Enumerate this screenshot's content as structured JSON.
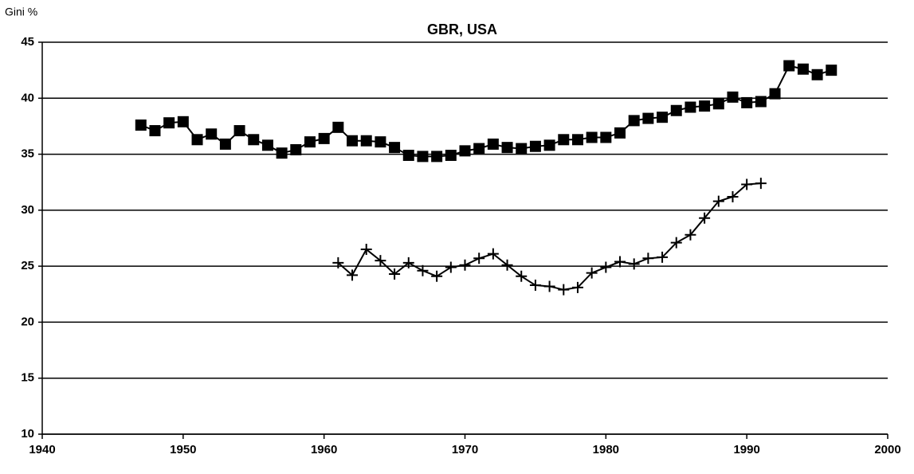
{
  "chart_data": {
    "type": "line",
    "title": "GBR, USA",
    "y_label": "Gini %",
    "xlim": [
      1940,
      2000
    ],
    "xticks": [
      1940,
      1950,
      1960,
      1970,
      1980,
      1990,
      2000
    ],
    "ylim": [
      10,
      45
    ],
    "yticks": [
      10,
      15,
      20,
      25,
      30,
      35,
      40,
      45
    ],
    "grid": true,
    "series": [
      {
        "color": "#000000",
        "marker": "square",
        "x": [
          1947,
          1948,
          1949,
          1950,
          1951,
          1952,
          1953,
          1954,
          1955,
          1956,
          1957,
          1958,
          1959,
          1960,
          1961,
          1962,
          1963,
          1964,
          1965,
          1966,
          1967,
          1968,
          1969,
          1970,
          1971,
          1972,
          1973,
          1974,
          1975,
          1976,
          1977,
          1978,
          1979,
          1980,
          1981,
          1982,
          1983,
          1984,
          1985,
          1986,
          1987,
          1988,
          1989,
          1990,
          1991,
          1992,
          1993,
          1994,
          1995,
          1996
        ],
        "values": [
          37.6,
          37.1,
          37.8,
          37.9,
          36.3,
          36.8,
          35.9,
          37.1,
          36.3,
          35.8,
          35.1,
          35.4,
          36.1,
          36.4,
          37.4,
          36.2,
          36.2,
          36.1,
          35.6,
          34.9,
          34.8,
          34.8,
          34.9,
          35.3,
          35.5,
          35.9,
          35.6,
          35.5,
          35.7,
          35.8,
          36.3,
          36.3,
          36.5,
          36.5,
          36.9,
          38.0,
          38.2,
          38.3,
          38.9,
          39.2,
          39.3,
          39.5,
          40.1,
          39.6,
          39.7,
          40.4,
          42.9,
          42.6,
          42.1,
          42.5
        ]
      },
      {
        "color": "#000000",
        "marker": "plus",
        "x": [
          1961,
          1962,
          1963,
          1964,
          1965,
          1966,
          1967,
          1968,
          1969,
          1970,
          1971,
          1972,
          1973,
          1974,
          1975,
          1976,
          1977,
          1978,
          1979,
          1980,
          1981,
          1982,
          1983,
          1984,
          1985,
          1986,
          1987,
          1988,
          1989,
          1990,
          1991
        ],
        "values": [
          25.3,
          24.2,
          26.5,
          25.5,
          24.3,
          25.3,
          24.6,
          24.1,
          24.9,
          25.1,
          25.7,
          26.1,
          25.1,
          24.1,
          23.3,
          23.2,
          22.9,
          23.1,
          24.4,
          24.9,
          25.4,
          25.2,
          25.7,
          25.8,
          27.1,
          27.8,
          29.3,
          30.8,
          31.2,
          32.3,
          32.4
        ]
      }
    ]
  }
}
